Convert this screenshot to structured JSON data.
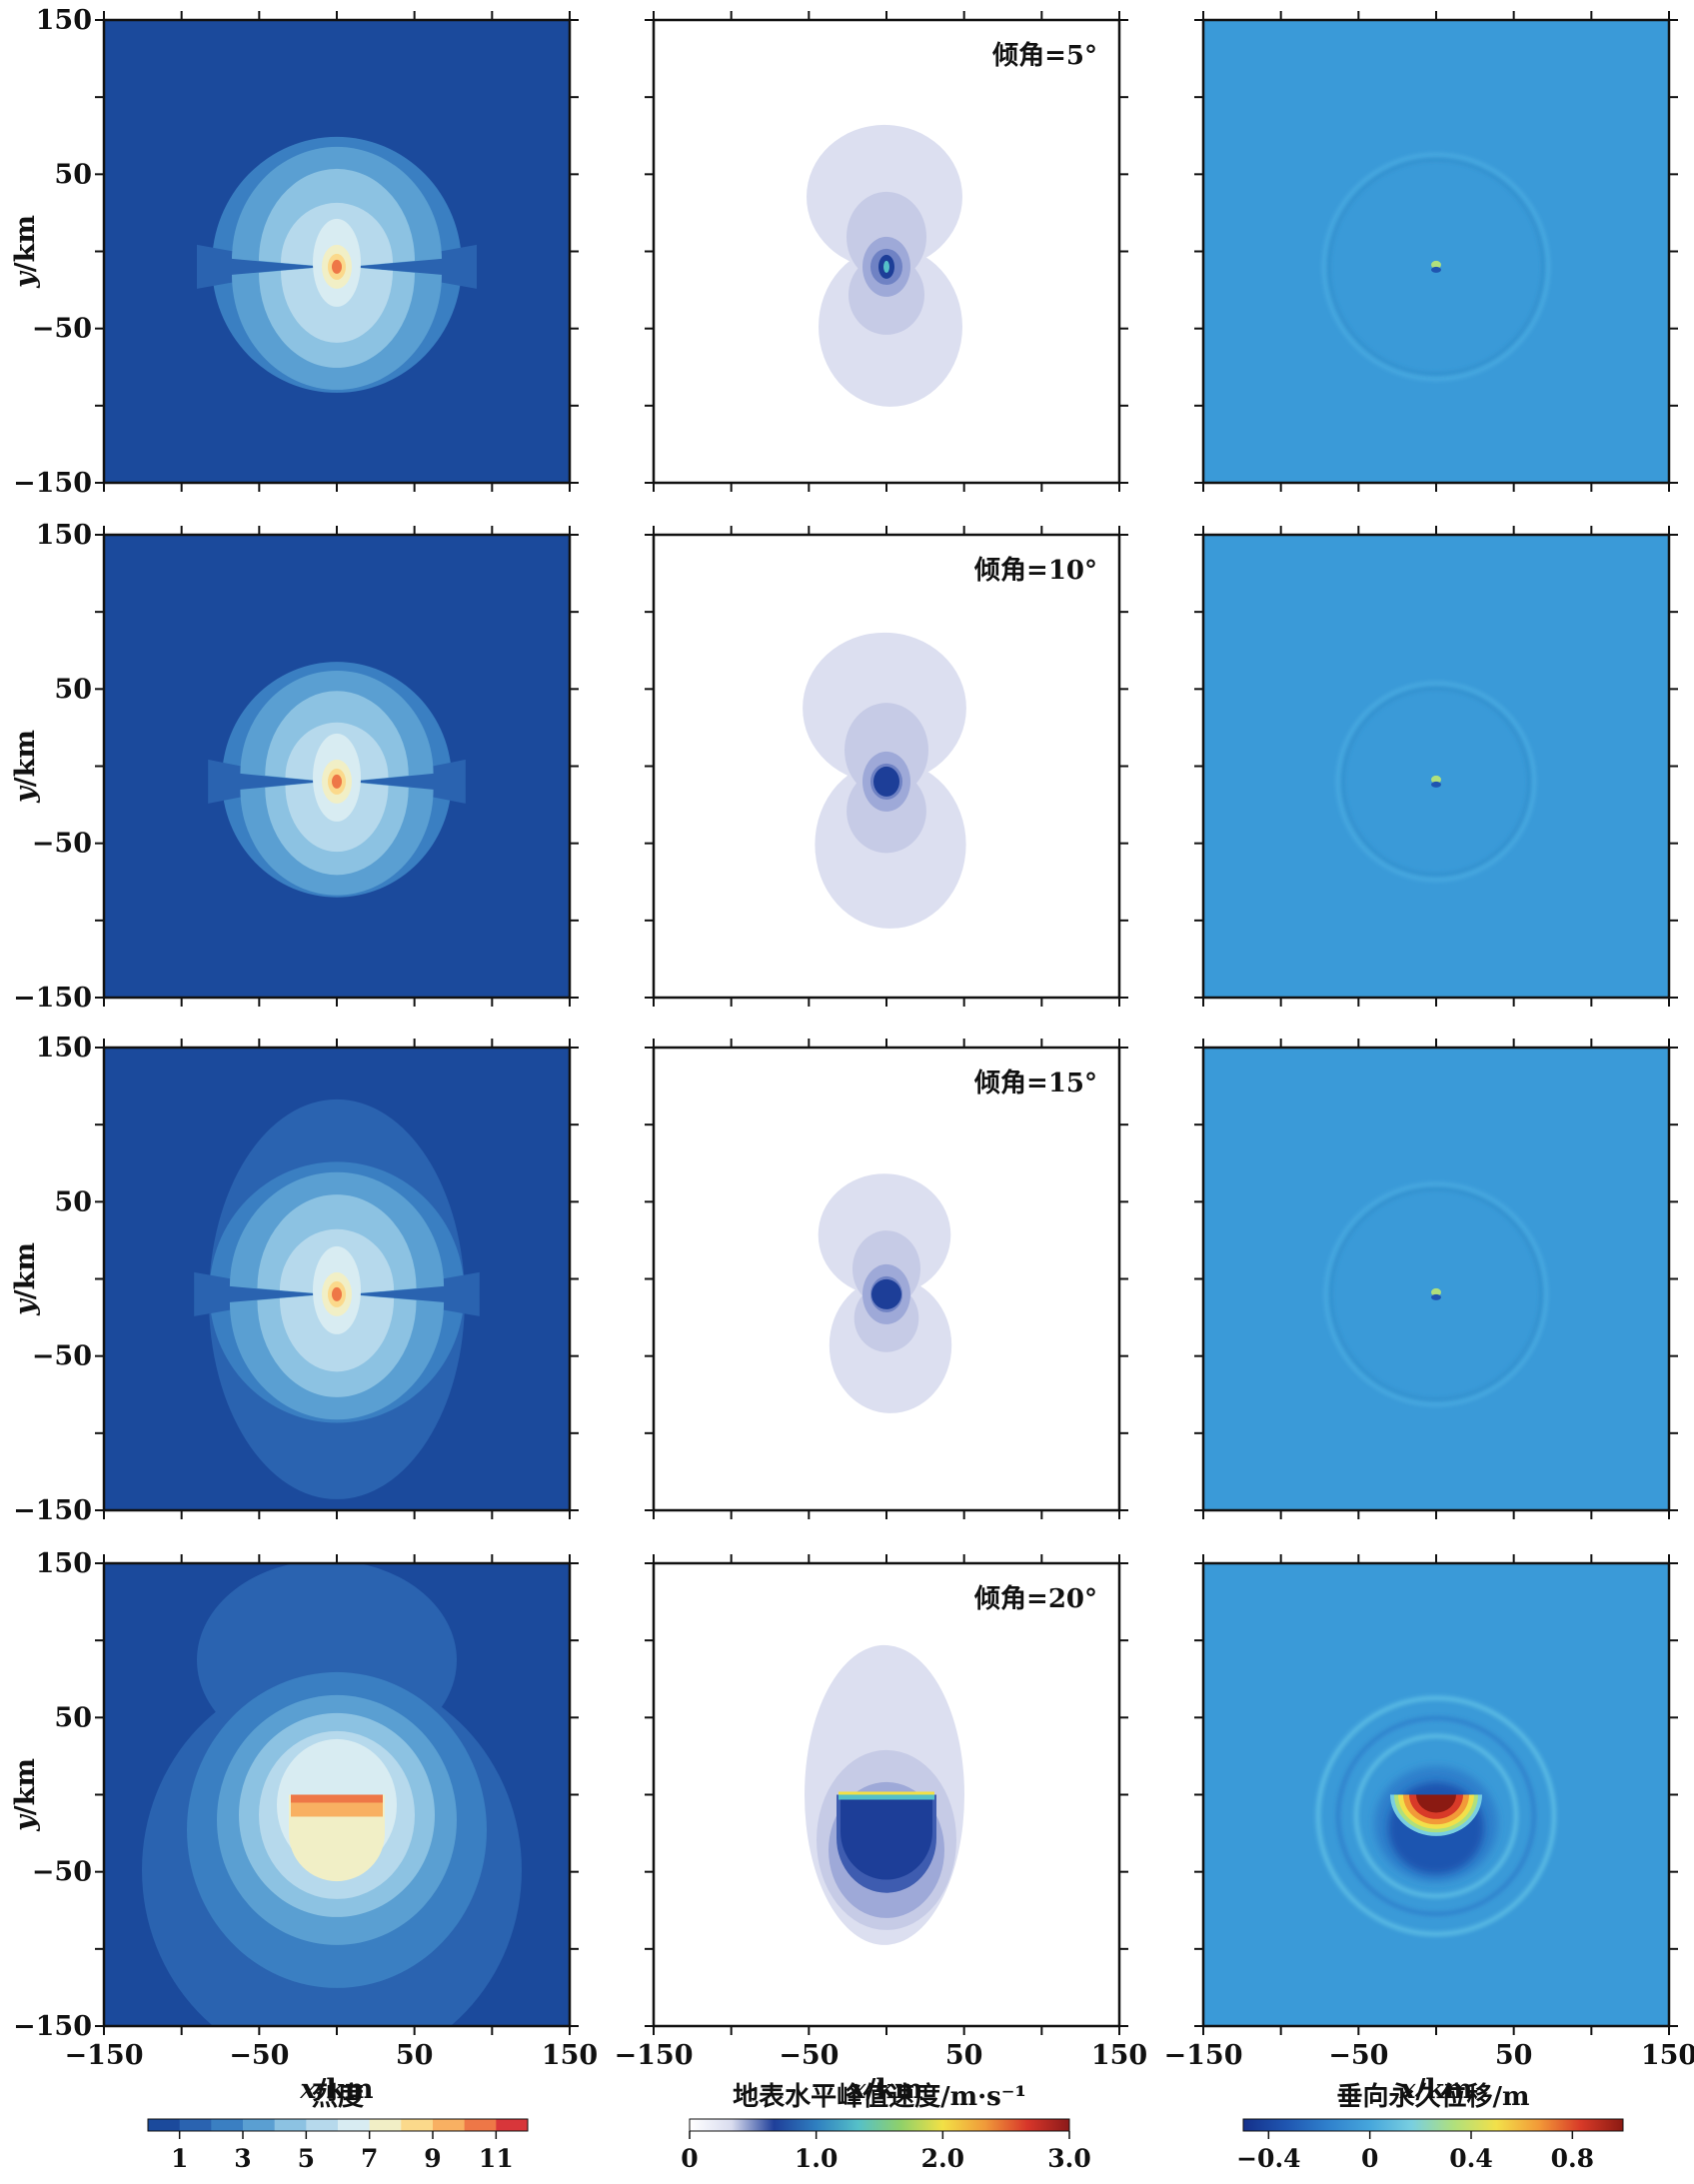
{
  "chart_data": {
    "type": "heatmap",
    "layout": "4 rows x 3 columns of map panels",
    "x_axis": {
      "label_var": "x",
      "label_unit": "/km",
      "range": [
        -150,
        150
      ],
      "ticks": [
        "−150",
        "−50",
        "50",
        "150"
      ]
    },
    "y_axis": {
      "label_var": "y",
      "label_unit": "/km",
      "range": [
        -150,
        150
      ],
      "ticks": [
        "150",
        "50",
        "−50",
        "−150"
      ]
    },
    "rows": [
      {
        "dip_label": "倾角=5°",
        "dip_deg": 5
      },
      {
        "dip_label": "倾角=10°",
        "dip_deg": 10
      },
      {
        "dip_label": "倾角=15°",
        "dip_deg": 15
      },
      {
        "dip_label": "倾角=20°",
        "dip_deg": 20
      }
    ],
    "columns": [
      {
        "quantity": "烈度",
        "colorbar_title": "烈度",
        "colorbar_type": "discrete",
        "colorbar_range": [
          0,
          12
        ],
        "colorbar_ticks": [
          {
            "value": 1,
            "label": "1"
          },
          {
            "value": 3,
            "label": "3"
          },
          {
            "value": 5,
            "label": "5"
          },
          {
            "value": 7,
            "label": "7"
          },
          {
            "value": 9,
            "label": "9"
          },
          {
            "value": 11,
            "label": "11"
          }
        ],
        "colors": [
          "#1b4a9c",
          "#2a63b0",
          "#3a7fc2",
          "#5a9fd2",
          "#8cc2e2",
          "#b6d9ec",
          "#d8ecf2",
          "#f1efc6",
          "#fbd98b",
          "#f8b062",
          "#ee7747",
          "#d8363a"
        ]
      },
      {
        "quantity": "地表水平峰值速度",
        "colorbar_title": "地表水平峰值速度/m·s⁻¹",
        "colorbar_type": "continuous",
        "colorbar_range": [
          0,
          3.0
        ],
        "colorbar_ticks": [
          {
            "value": 0,
            "label": "0"
          },
          {
            "value": 1.0,
            "label": "1.0"
          },
          {
            "value": 2.0,
            "label": "2.0"
          },
          {
            "value": 3.0,
            "label": "3.0"
          }
        ],
        "colors": [
          "#ffffff",
          "#d9dcef",
          "#1f3f9a",
          "#2f7fc0",
          "#55c0c8",
          "#8fd06a",
          "#f2e046",
          "#f09a3a",
          "#d8362a",
          "#8b1a1a"
        ]
      },
      {
        "quantity": "垂向永久位移",
        "colorbar_title": "垂向永久位移/m",
        "colorbar_type": "continuous",
        "colorbar_range": [
          -0.5,
          1.0
        ],
        "colorbar_ticks": [
          {
            "value": -0.4,
            "label": "−0.4"
          },
          {
            "value": 0,
            "label": "0"
          },
          {
            "value": 0.4,
            "label": "0.4"
          },
          {
            "value": 0.8,
            "label": "0.8"
          }
        ],
        "colors": [
          "#14308a",
          "#1f55b0",
          "#2f80cc",
          "#46a6dc",
          "#79cfe0",
          "#b0e07c",
          "#f2e04a",
          "#f29a38",
          "#d83a28",
          "#8b1a12"
        ]
      }
    ]
  },
  "palette": {
    "intensity_background": "#1b4a9c",
    "displacement_background": "#3a9ad8",
    "velocity_background": "#ffffff"
  }
}
